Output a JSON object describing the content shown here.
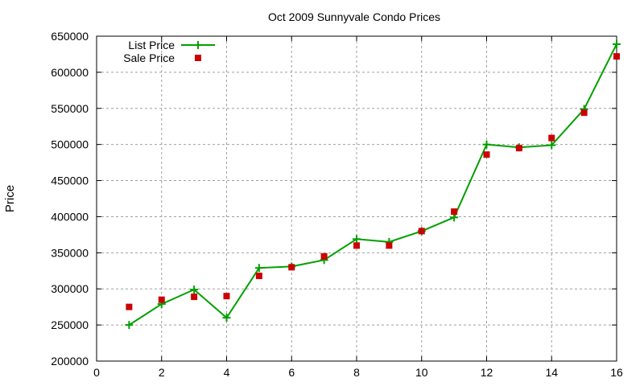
{
  "chart_data": {
    "type": "line",
    "title": "Oct 2009 Sunnyvale Condo Prices",
    "xlabel": "",
    "ylabel": "Price",
    "xlim": [
      0,
      16
    ],
    "ylim": [
      200000,
      650000
    ],
    "x_ticks": [
      0,
      2,
      4,
      6,
      8,
      10,
      12,
      14,
      16
    ],
    "y_ticks": [
      200000,
      250000,
      300000,
      350000,
      400000,
      450000,
      500000,
      550000,
      600000,
      650000
    ],
    "grid": true,
    "legend_position": "top-left",
    "x": [
      1,
      2,
      3,
      4,
      5,
      6,
      7,
      8,
      9,
      10,
      11,
      12,
      13,
      14,
      15,
      16
    ],
    "series": [
      {
        "name": "List Price",
        "style": "linespoints",
        "marker": "plus",
        "color": "#00a000",
        "values": [
          250000,
          279000,
          299000,
          260000,
          329000,
          331000,
          340000,
          369000,
          365000,
          380000,
          399000,
          500000,
          496000,
          499000,
          549000,
          639000
        ]
      },
      {
        "name": "Sale Price",
        "style": "points",
        "marker": "square",
        "color": "#cc0000",
        "values": [
          275000,
          285000,
          289000,
          290000,
          318000,
          330000,
          345000,
          360000,
          360000,
          380000,
          407000,
          486000,
          495000,
          509000,
          544000,
          622000
        ]
      }
    ]
  }
}
